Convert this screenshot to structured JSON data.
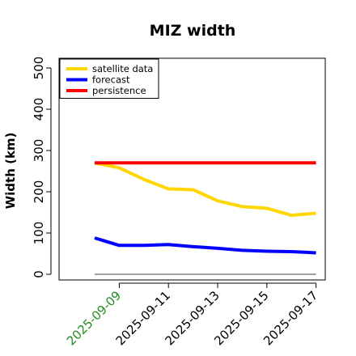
{
  "chart_data": {
    "type": "line",
    "title": "MIZ width",
    "xlabel": "",
    "ylabel": "Width (km)",
    "x": [
      "2025-09-08",
      "2025-09-09",
      "2025-09-10",
      "2025-09-11",
      "2025-09-12",
      "2025-09-13",
      "2025-09-14",
      "2025-09-15",
      "2025-09-16",
      "2025-09-17"
    ],
    "x_ticks": [
      "2025-09-09",
      "2025-09-11",
      "2025-09-13",
      "2025-09-15",
      "2025-09-17"
    ],
    "highlight_tick": "2025-09-09",
    "y_ticks": [
      0,
      100,
      200,
      300,
      400,
      500
    ],
    "ylim": [
      -10,
      520
    ],
    "series": [
      {
        "name": "satellite data",
        "color": "#FFD700",
        "values": [
          270,
          258,
          230,
          207,
          205,
          178,
          164,
          160,
          143,
          148
        ]
      },
      {
        "name": "forecast",
        "color": "#0000FF",
        "values": [
          88,
          70,
          70,
          72,
          67,
          63,
          58,
          56,
          55,
          52
        ]
      },
      {
        "name": "persistence",
        "color": "#FF0000",
        "values": [
          270,
          270,
          270,
          270,
          270,
          270,
          270,
          270,
          270,
          270
        ]
      }
    ],
    "reference_line": {
      "value": 0,
      "color": "#808080"
    },
    "highlight_color": "#228B22",
    "legend_position": "top-left"
  }
}
